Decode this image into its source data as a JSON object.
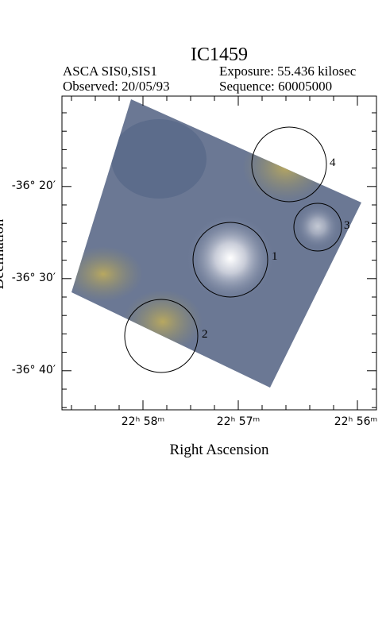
{
  "header": {
    "title": "IC1459",
    "instrument": "ASCA SIS0,SIS1",
    "exposure": "Exposure: 55.436 kilosec",
    "observed": "Observed: 20/05/93",
    "sequence": "Sequence: 60005000"
  },
  "axes": {
    "x_label": "Right Ascension",
    "y_label": "Declination",
    "x_ticks": [
      "22ʰ 58ᵐ",
      "22ʰ 57ᵐ",
      "22ʰ 56ᵐ"
    ],
    "y_ticks": [
      "-36° 20′",
      "-36° 30′",
      "-36° 40′"
    ]
  },
  "regions": [
    {
      "label": "1"
    },
    {
      "label": "2"
    },
    {
      "label": "3"
    },
    {
      "label": "4"
    }
  ]
}
